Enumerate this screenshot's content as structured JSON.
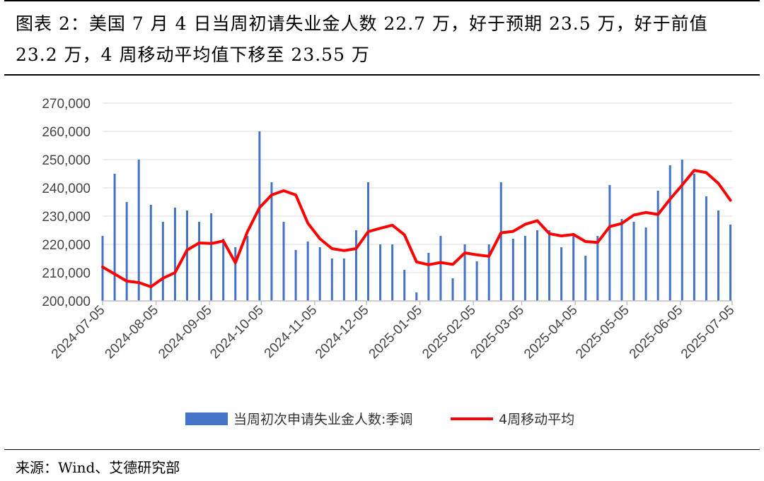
{
  "header": {
    "title": "图表 2：美国 7 月 4 日当周初请失业金人数 22.7 万，好于预期 23.5 万，好于前值 23.2 万，4 周移动平均值下移至 23.55 万"
  },
  "footer": {
    "source": "来源：Wind、艾德研究部"
  },
  "chart_data": {
    "type": "bar+line",
    "ylim": [
      200000,
      270000
    ],
    "yticks": [
      "200,000",
      "210,000",
      "220,000",
      "230,000",
      "240,000",
      "250,000",
      "260,000",
      "270,000"
    ],
    "xticks": [
      "2024-07-05",
      "2024-08-05",
      "2024-09-05",
      "2024-10-05",
      "2024-11-05",
      "2024-12-05",
      "2025-01-05",
      "2025-02-05",
      "2025-03-05",
      "2025-04-05",
      "2025-05-05",
      "2025-06-05",
      "2025-07-05"
    ],
    "grid": true,
    "legend_position": "bottom",
    "colors": {
      "bars": "#4472C4",
      "line": "#FF0000",
      "grid": "#D9D9D9"
    },
    "x": [
      "2024-07-05",
      "2024-07-12",
      "2024-07-19",
      "2024-07-26",
      "2024-08-02",
      "2024-08-09",
      "2024-08-16",
      "2024-08-23",
      "2024-08-30",
      "2024-09-06",
      "2024-09-13",
      "2024-09-20",
      "2024-09-27",
      "2024-10-04",
      "2024-10-11",
      "2024-10-18",
      "2024-10-25",
      "2024-11-01",
      "2024-11-08",
      "2024-11-15",
      "2024-11-22",
      "2024-11-29",
      "2024-12-06",
      "2024-12-13",
      "2024-12-20",
      "2024-12-27",
      "2025-01-03",
      "2025-01-10",
      "2025-01-17",
      "2025-01-24",
      "2025-01-31",
      "2025-02-07",
      "2025-02-14",
      "2025-02-21",
      "2025-02-28",
      "2025-03-07",
      "2025-03-14",
      "2025-03-21",
      "2025-03-28",
      "2025-04-04",
      "2025-04-11",
      "2025-04-18",
      "2025-04-25",
      "2025-05-02",
      "2025-05-09",
      "2025-05-16",
      "2025-05-23",
      "2025-05-30",
      "2025-06-06",
      "2025-06-13",
      "2025-06-20",
      "2025-06-27",
      "2025-07-04"
    ],
    "series": [
      {
        "name": "当周初次申请失业金人数:季调",
        "type": "bar",
        "values": [
          223000,
          245000,
          235000,
          250000,
          234000,
          228000,
          233000,
          232000,
          228000,
          231000,
          222000,
          219000,
          223000,
          260000,
          242000,
          228000,
          218000,
          221000,
          219000,
          215000,
          215000,
          225000,
          242000,
          220000,
          220000,
          211000,
          203000,
          217000,
          223000,
          208000,
          220000,
          214000,
          220000,
          242000,
          222000,
          223000,
          225000,
          225000,
          219000,
          224000,
          216000,
          223000,
          241000,
          229000,
          228000,
          226000,
          239000,
          248000,
          250000,
          245000,
          237000,
          232000,
          227000
        ]
      },
      {
        "name": "4周移动平均",
        "type": "line",
        "values": [
          212000,
          209500,
          207000,
          206500,
          205000,
          208000,
          210000,
          218000,
          220500,
          220300,
          221200,
          213500,
          224500,
          233000,
          237500,
          239000,
          237500,
          227500,
          222000,
          218500,
          217800,
          218500,
          224500,
          225700,
          226800,
          223400,
          213800,
          212800,
          213600,
          212900,
          217000,
          216300,
          215800,
          224100,
          224600,
          227100,
          228400,
          223800,
          223000,
          223500,
          221000,
          220700,
          226300,
          227400,
          230400,
          231300,
          230600,
          236000,
          241000,
          246200,
          245400,
          241600,
          235600
        ]
      }
    ]
  }
}
